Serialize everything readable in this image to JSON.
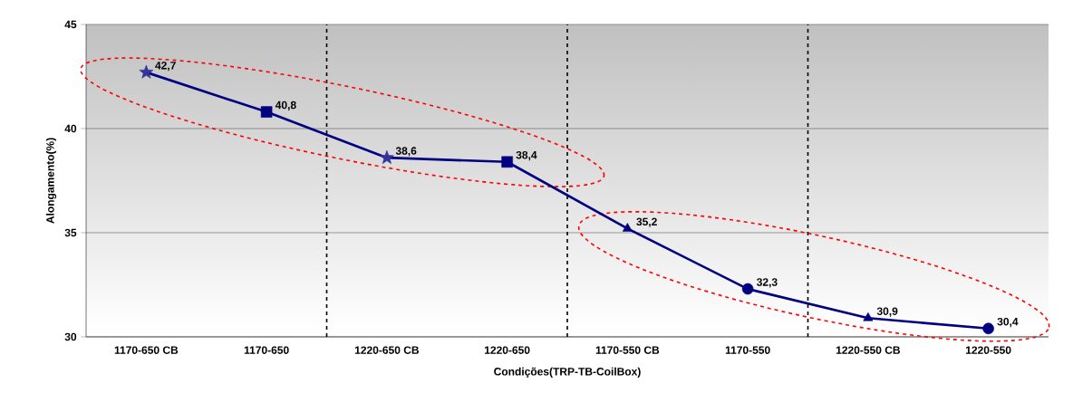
{
  "chart_data": {
    "type": "line",
    "xlabel": "Condições(TRP-TB-CoilBox)",
    "ylabel": "Alongamento(%)",
    "categories": [
      "1170-650 CB",
      "1170-650",
      "1220-650 CB",
      "1220-650",
      "1170-550 CB",
      "1170-550",
      "1220-550 CB",
      "1220-550"
    ],
    "ylim": [
      30,
      45
    ],
    "yticks": [
      30,
      35,
      40,
      45
    ],
    "grid": "y",
    "line_style": "solid",
    "series": [
      {
        "color": "#000080",
        "marker": "none",
        "values": [
          42.7,
          40.8,
          38.6,
          38.4,
          35.2,
          32.3,
          30.9,
          30.4
        ],
        "value_labels": [
          "42,7",
          "40,8",
          "38,6",
          "38,4",
          "35,2",
          "32,3",
          "30,9",
          "30,4"
        ]
      },
      {
        "type": "scatter",
        "marker": "star",
        "color": "#333399",
        "values": [
          42.7,
          null,
          38.6,
          null,
          null,
          null,
          null,
          null
        ]
      },
      {
        "type": "scatter",
        "marker": "square",
        "color": "#000080",
        "values": [
          null,
          40.8,
          null,
          38.4,
          null,
          null,
          null,
          null
        ]
      },
      {
        "type": "scatter",
        "marker": "triangle",
        "color": "#000080",
        "values": [
          null,
          null,
          null,
          null,
          35.2,
          null,
          30.9,
          null
        ]
      },
      {
        "type": "scatter",
        "marker": "circle",
        "color": "#000080",
        "values": [
          null,
          null,
          null,
          null,
          null,
          32.3,
          null,
          30.4
        ]
      }
    ]
  }
}
